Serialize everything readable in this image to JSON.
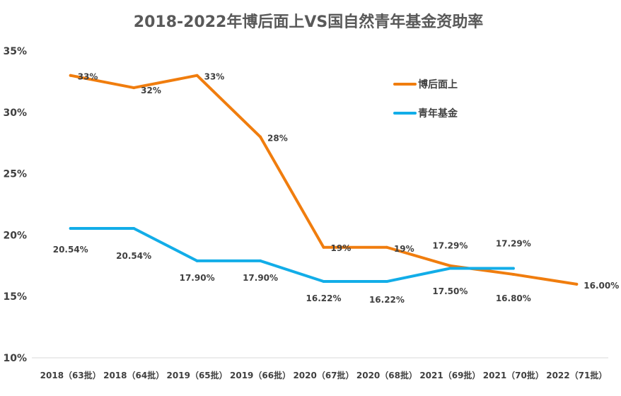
{
  "chart_data": {
    "type": "line",
    "title": "2018-2022年博后面上VS国自然青年基金资助率",
    "xlabel": "",
    "ylabel": "",
    "categories": [
      "2018（63批）",
      "2018（64批）",
      "2019（65批）",
      "2019（66批）",
      "2020（67批）",
      "2020（68批）",
      "2021（69批）",
      "2021（70批）",
      "2022（71批）"
    ],
    "ylim": [
      10,
      35
    ],
    "yticks": [
      "10%",
      "15%",
      "20%",
      "25%",
      "30%",
      "35%"
    ],
    "grid": false,
    "legend_position": "top-right",
    "series": [
      {
        "name": "博后面上",
        "color": "#F07D0E",
        "values": [
          33,
          32,
          33,
          28,
          19,
          19,
          17.5,
          16.8,
          16.0
        ],
        "labels": [
          "33%",
          "32%",
          "33%",
          "28%",
          "19%",
          "19%",
          "17.50%",
          "16.80%",
          "16.00%"
        ]
      },
      {
        "name": "青年基金",
        "color": "#12ADE8",
        "values": [
          20.54,
          20.54,
          17.9,
          17.9,
          16.22,
          16.22,
          17.29,
          17.29,
          null
        ],
        "labels": [
          "20.54%",
          "20.54%",
          "17.90%",
          "17.90%",
          "16.22%",
          "16.22%",
          "17.29%",
          "17.29%",
          ""
        ]
      }
    ]
  }
}
